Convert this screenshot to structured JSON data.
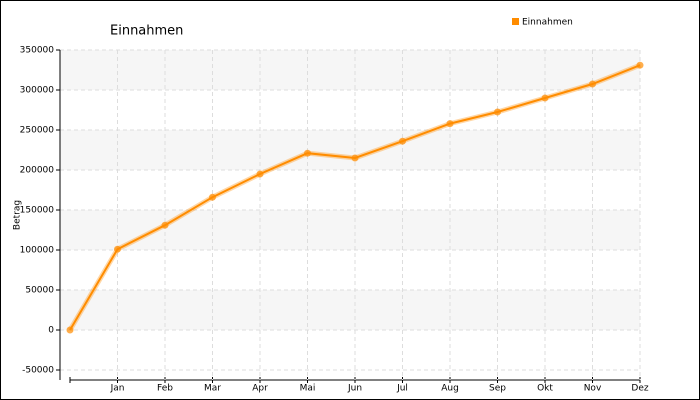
{
  "chart_data": {
    "type": "line",
    "title": "Einnahmen",
    "y_label": "Betrag",
    "categories": [
      null,
      "Jan",
      "Feb",
      "Mar",
      "Apr",
      "Mai",
      "Jun",
      "Jul",
      "Aug",
      "Sep",
      "Okt",
      "Nov",
      "Dez"
    ],
    "series": [
      {
        "name": "Einnahmen",
        "color": "#ff8c00",
        "values": [
          0,
          101000,
          131000,
          166000,
          195000,
          221000,
          215000,
          236000,
          258000,
          272500,
          290000,
          307500,
          331000
        ]
      }
    ],
    "ylim": [
      -62500,
      350000
    ],
    "yticks": [
      -50000,
      0,
      50000,
      100000,
      150000,
      200000,
      250000,
      300000,
      350000
    ],
    "grid": true,
    "legend": "top-right"
  }
}
